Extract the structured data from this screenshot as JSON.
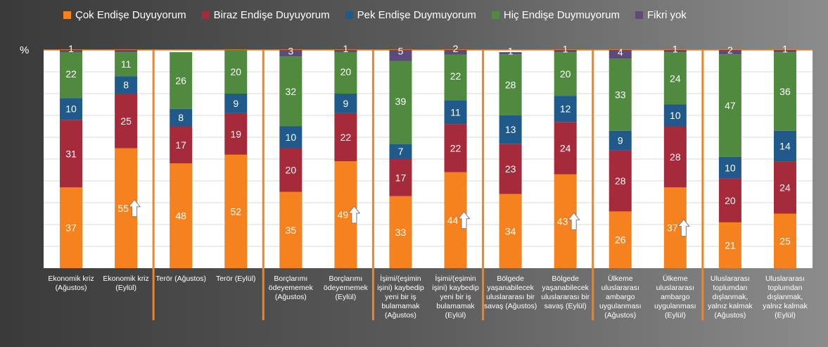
{
  "chart_data": {
    "type": "bar",
    "stacked": true,
    "unit_label": "%",
    "ylim": [
      0,
      100
    ],
    "grid": true,
    "legend_position": "top",
    "categories": [
      [
        "Ekonomik kriz",
        "(Ağustos)"
      ],
      [
        "Ekonomik kriz",
        "(Eylül)"
      ],
      [
        "Terör (Ağustos)"
      ],
      [
        "Terör (Eylül)"
      ],
      [
        "Borçlarımı",
        "ödeyememek",
        "(Ağustos)"
      ],
      [
        "Borçlarımı",
        "ödeyememek",
        "(Eylül)"
      ],
      [
        "İşimi/(eşimin",
        "işini) kaybedip",
        "yeni bir iş",
        "bulamamak",
        "(Ağustos)"
      ],
      [
        "İşimi/(eşimin",
        "işini) kaybedip",
        "yeni bir iş",
        "bulamamak",
        "(Eylül)"
      ],
      [
        "Bölgede",
        "yaşanabilecek",
        "uluslararası bir",
        "savaş (Ağustos)"
      ],
      [
        "Bölgede",
        "yaşanabilecek",
        "uluslararası bir",
        "savaş (Eylül)"
      ],
      [
        "Ülkeme",
        "uluslararası",
        "ambargo",
        "uygulanması",
        "(Ağustos)"
      ],
      [
        "Ülkeme",
        "uluslararası",
        "ambargo",
        "uygulanması",
        "(Eylül)"
      ],
      [
        "Uluslararası",
        "toplumdan",
        "dışlanmak,",
        "yalnız kalmak",
        "(Ağustos)"
      ],
      [
        "Uluslararası",
        "toplumdan",
        "dışlanmak,",
        "yalnız kalmak",
        "(Eylül)"
      ]
    ],
    "series": [
      {
        "name": "Çok Endişe Duyuyorum",
        "color": "#f5821f",
        "values": [
          37,
          55,
          48,
          52,
          35,
          49,
          33,
          44,
          34,
          43,
          26,
          37,
          21,
          25
        ]
      },
      {
        "name": "Biraz Endişe Duyuyorum",
        "color": "#a52a3a",
        "values": [
          31,
          25,
          17,
          19,
          20,
          22,
          17,
          22,
          23,
          24,
          28,
          28,
          20,
          24
        ]
      },
      {
        "name": "Pek Endişe Duymuyorum",
        "color": "#1f5a8a",
        "values": [
          10,
          8,
          8,
          9,
          10,
          9,
          7,
          11,
          13,
          12,
          9,
          10,
          10,
          14
        ]
      },
      {
        "name": "Hiç Endişe Duymuyorum",
        "color": "#4f8a3f",
        "values": [
          22,
          11,
          26,
          20,
          32,
          20,
          39,
          22,
          28,
          20,
          33,
          24,
          47,
          36
        ]
      },
      {
        "name": "Fikri yok",
        "color": "#5d4a7a",
        "values": [
          1,
          1,
          0,
          0,
          3,
          1,
          5,
          2,
          1,
          1,
          4,
          1,
          2,
          1
        ]
      }
    ],
    "data_labels": [
      [
        "37",
        "31",
        "10",
        "22",
        "1"
      ],
      [
        "55",
        "25",
        "8",
        "11",
        ""
      ],
      [
        "48",
        "17",
        "8",
        "26",
        ""
      ],
      [
        "52",
        "19",
        "9",
        "20",
        ""
      ],
      [
        "35",
        "20",
        "10",
        "32",
        "3"
      ],
      [
        "49",
        "22",
        "9",
        "20",
        "1"
      ],
      [
        "33",
        "17",
        "7",
        "39",
        "5"
      ],
      [
        "44",
        "22",
        "11",
        "22",
        "2"
      ],
      [
        "34",
        "23",
        "13",
        "28",
        "1"
      ],
      [
        "43",
        "24",
        "12",
        "20",
        "1"
      ],
      [
        "26",
        "28",
        "9",
        "33",
        "4"
      ],
      [
        "37",
        "28",
        "10",
        "24",
        "1"
      ],
      [
        "21",
        "20",
        "10",
        "47",
        "2"
      ],
      [
        "25",
        "24",
        "14",
        "36",
        "1"
      ]
    ],
    "increase_arrow_on": [
      1,
      5,
      7,
      9,
      11
    ],
    "dividers_after": [
      1,
      3,
      5,
      7,
      9,
      11
    ]
  }
}
